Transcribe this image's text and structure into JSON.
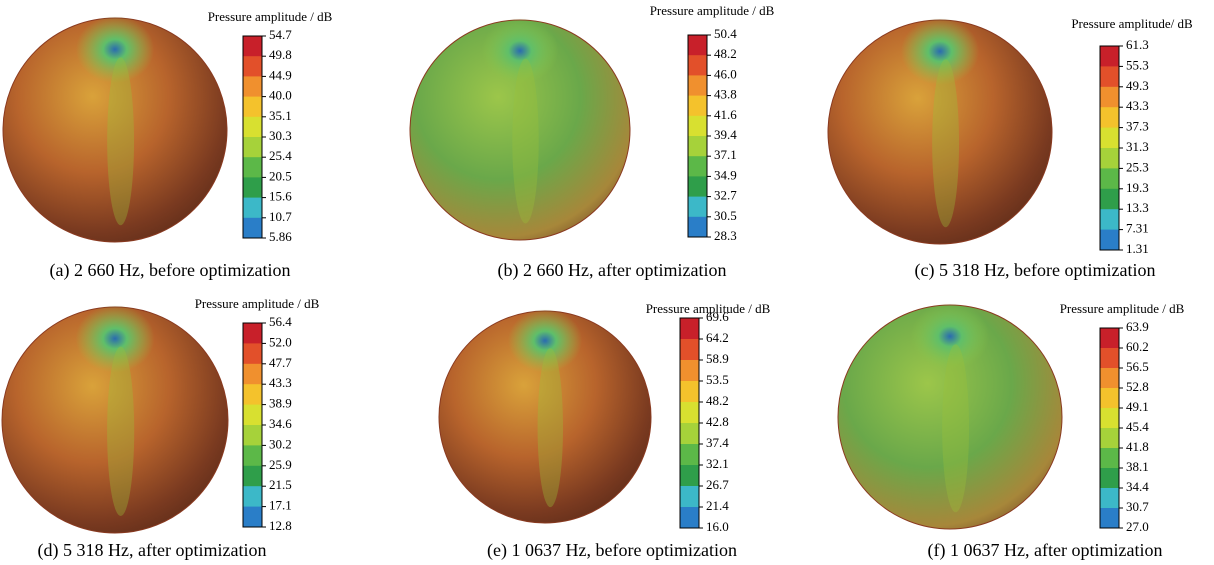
{
  "panels": [
    {
      "caption": "(a) 2 660 Hz, before optimization",
      "colorbar_title": "Pressure amplitude / dB",
      "colorbar_labels": [
        "54.7",
        "49.8",
        "44.9",
        "40.0",
        "35.1",
        "30.3",
        "25.4",
        "20.5",
        "15.6",
        "10.7",
        "5.86"
      ]
    },
    {
      "caption": "(b) 2 660 Hz, after optimization",
      "colorbar_title": "Pressure amplitude / dB",
      "colorbar_labels": [
        "50.4",
        "48.2",
        "46.0",
        "43.8",
        "41.6",
        "39.4",
        "37.1",
        "34.9",
        "32.7",
        "30.5",
        "28.3"
      ]
    },
    {
      "caption": "(c) 5 318 Hz, before optimization",
      "colorbar_title": "Pressure amplitude/ dB",
      "colorbar_labels": [
        "61.3",
        "55.3",
        "49.3",
        "43.3",
        "37.3",
        "31.3",
        "25.3",
        "19.3",
        "13.3",
        "7.31",
        "1.31"
      ]
    },
    {
      "caption": "(d) 5 318 Hz, after optimization",
      "colorbar_title": "Pressure amplitude / dB",
      "colorbar_labels": [
        "56.4",
        "52.0",
        "47.7",
        "43.3",
        "38.9",
        "34.6",
        "30.2",
        "25.9",
        "21.5",
        "17.1",
        "12.8"
      ]
    },
    {
      "caption": "(e) 1 0637 Hz, before optimization",
      "colorbar_title": "Pressure amplitude / dB",
      "colorbar_labels": [
        "69.6",
        "64.2",
        "58.9",
        "53.5",
        "48.2",
        "42.8",
        "37.4",
        "32.1",
        "26.7",
        "21.4",
        "16.0"
      ]
    },
    {
      "caption": "(f) 1 0637 Hz, after optimization",
      "colorbar_title": "Pressure amplitude / dB",
      "colorbar_labels": [
        "63.9",
        "60.2",
        "56.5",
        "52.8",
        "49.1",
        "45.4",
        "41.8",
        "38.1",
        "34.4",
        "30.7",
        "27.0"
      ]
    }
  ]
}
